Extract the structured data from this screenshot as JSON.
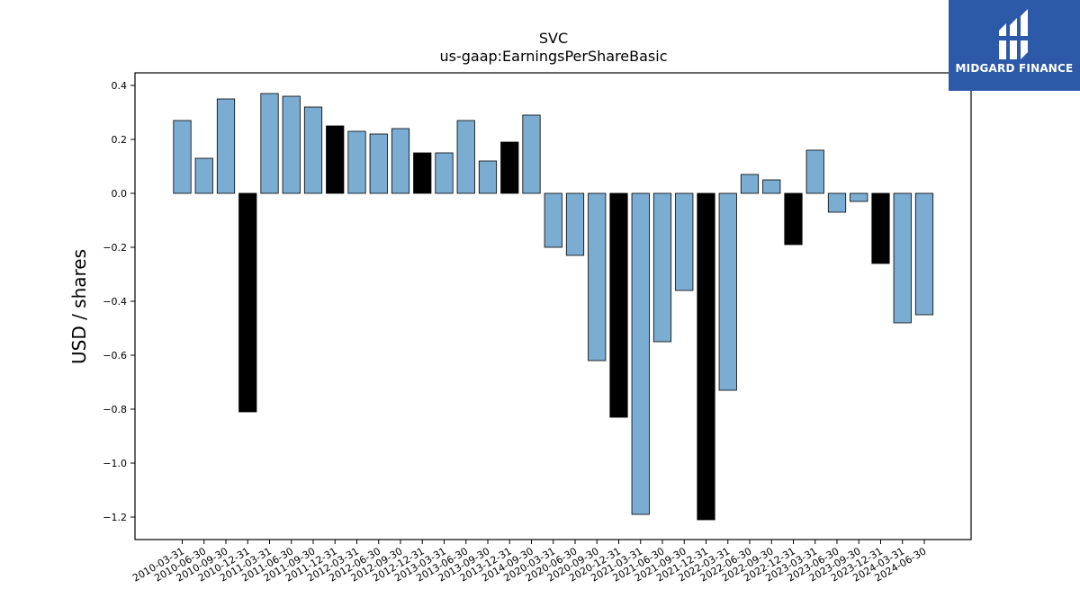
{
  "chart_data": {
    "type": "bar",
    "title": "SVC",
    "subtitle": "us-gaap:EarningsPerShareBasic",
    "xlabel": "",
    "ylabel": "USD / shares",
    "ylim": [
      -1.3,
      0.45
    ],
    "yticks": [
      0.4,
      0.2,
      0.0,
      -0.2,
      -0.4,
      -0.6,
      -0.8,
      -1.0,
      -1.2
    ],
    "ytick_labels": [
      "0.4",
      "0.2",
      "0.0",
      "−0.2",
      "−0.4",
      "−0.6",
      "−0.8",
      "−1.0",
      "−1.2"
    ],
    "grid": false,
    "legend": "none",
    "colors": {
      "quarter": "#7bacd1",
      "annual": "#000000",
      "edge": "#000000"
    },
    "categories": [
      "2010-03-31",
      "2010-06-30",
      "2010-09-30",
      "2010-12-31",
      "2011-03-31",
      "2011-06-30",
      "2011-09-30",
      "2011-12-31",
      "2012-03-31",
      "2012-06-30",
      "2012-09-30",
      "2012-12-31",
      "2013-03-31",
      "2013-06-30",
      "2013-09-30",
      "2013-12-31",
      "2014-09-30",
      "2020-03-31",
      "2020-06-30",
      "2020-09-30",
      "2020-12-31",
      "2021-03-31",
      "2021-06-30",
      "2021-09-30",
      "2021-12-31",
      "2022-03-31",
      "2022-06-30",
      "2022-09-30",
      "2022-12-31",
      "2023-03-31",
      "2023-06-30",
      "2023-09-30",
      "2023-12-31",
      "2024-03-31",
      "2024-06-30"
    ],
    "values": [
      0.27,
      0.13,
      0.35,
      -0.81,
      0.37,
      0.36,
      0.32,
      0.25,
      0.23,
      0.22,
      0.24,
      0.15,
      0.15,
      0.27,
      0.12,
      0.19,
      0.29,
      -0.2,
      -0.23,
      -0.62,
      -0.83,
      -1.19,
      -0.55,
      -0.36,
      -1.21,
      -0.73,
      0.07,
      0.05,
      -0.19,
      0.16,
      -0.07,
      -0.03,
      -0.26,
      -0.48,
      -0.45
    ],
    "bar_kind": [
      "q",
      "q",
      "q",
      "a",
      "q",
      "q",
      "q",
      "a",
      "q",
      "q",
      "q",
      "a",
      "q",
      "q",
      "q",
      "a",
      "q",
      "q",
      "q",
      "q",
      "a",
      "q",
      "q",
      "q",
      "a",
      "q",
      "q",
      "q",
      "a",
      "q",
      "q",
      "q",
      "a",
      "q",
      "q"
    ]
  },
  "logo": {
    "text": "MIDGARD FINANCE",
    "icon": "midgard-logo-icon"
  }
}
